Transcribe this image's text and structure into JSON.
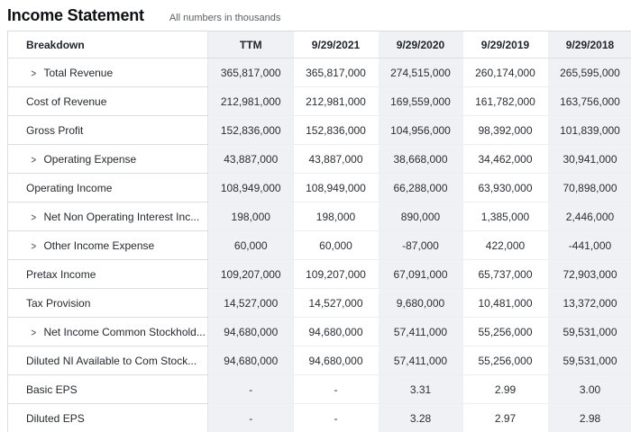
{
  "page": {
    "title": "Income Statement",
    "subtitle": "All numbers in thousands"
  },
  "icons": {
    "expand_chevron": ">"
  },
  "colors": {
    "shaded_column_bg": "#eff1f4",
    "header_text": "#21252c",
    "body_text": "#2b2e33",
    "row_border": "#dadce0",
    "subtitle_text": "#5b5f66"
  },
  "table": {
    "columns": [
      "Breakdown",
      "TTM",
      "9/29/2021",
      "9/29/2020",
      "9/29/2019",
      "9/29/2018"
    ],
    "shaded_columns": [
      "TTM",
      "9/29/2020",
      "9/29/2018"
    ],
    "rows": [
      {
        "label": "Total Revenue",
        "expandable": true,
        "values": [
          "365,817,000",
          "365,817,000",
          "274,515,000",
          "260,174,000",
          "265,595,000"
        ]
      },
      {
        "label": "Cost of Revenue",
        "expandable": false,
        "values": [
          "212,981,000",
          "212,981,000",
          "169,559,000",
          "161,782,000",
          "163,756,000"
        ]
      },
      {
        "label": "Gross Profit",
        "expandable": false,
        "values": [
          "152,836,000",
          "152,836,000",
          "104,956,000",
          "98,392,000",
          "101,839,000"
        ]
      },
      {
        "label": "Operating Expense",
        "expandable": true,
        "values": [
          "43,887,000",
          "43,887,000",
          "38,668,000",
          "34,462,000",
          "30,941,000"
        ]
      },
      {
        "label": "Operating Income",
        "expandable": false,
        "values": [
          "108,949,000",
          "108,949,000",
          "66,288,000",
          "63,930,000",
          "70,898,000"
        ]
      },
      {
        "label": "Net Non Operating Interest Inc...",
        "expandable": true,
        "values": [
          "198,000",
          "198,000",
          "890,000",
          "1,385,000",
          "2,446,000"
        ]
      },
      {
        "label": "Other Income Expense",
        "expandable": true,
        "values": [
          "60,000",
          "60,000",
          "-87,000",
          "422,000",
          "-441,000"
        ]
      },
      {
        "label": "Pretax Income",
        "expandable": false,
        "values": [
          "109,207,000",
          "109,207,000",
          "67,091,000",
          "65,737,000",
          "72,903,000"
        ]
      },
      {
        "label": "Tax Provision",
        "expandable": false,
        "values": [
          "14,527,000",
          "14,527,000",
          "9,680,000",
          "10,481,000",
          "13,372,000"
        ]
      },
      {
        "label": "Net Income Common Stockhold...",
        "expandable": true,
        "values": [
          "94,680,000",
          "94,680,000",
          "57,411,000",
          "55,256,000",
          "59,531,000"
        ]
      },
      {
        "label": "Diluted NI Available to Com Stock...",
        "expandable": false,
        "values": [
          "94,680,000",
          "94,680,000",
          "57,411,000",
          "55,256,000",
          "59,531,000"
        ]
      },
      {
        "label": "Basic EPS",
        "expandable": false,
        "values": [
          "-",
          "-",
          "3.31",
          "2.99",
          "3.00"
        ]
      },
      {
        "label": "Diluted EPS",
        "expandable": false,
        "values": [
          "-",
          "-",
          "3.28",
          "2.97",
          "2.98"
        ]
      }
    ]
  }
}
